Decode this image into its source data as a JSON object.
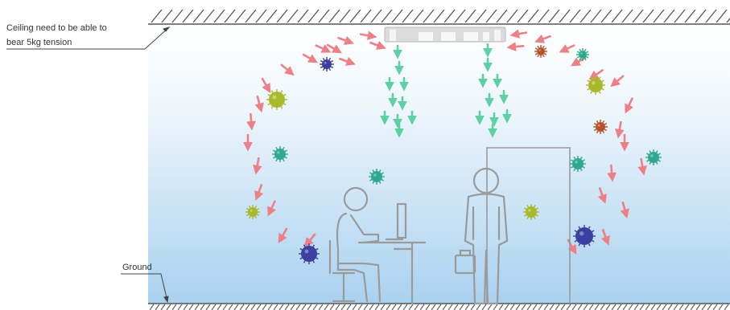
{
  "annotations": {
    "ceiling_line1": "Ceiling need to be able to",
    "ceiling_line2": "bear 5kg tension",
    "ground": "Ground"
  },
  "colors": {
    "room_gradient_top": "#ffffff",
    "room_gradient_bottom": "#a9d1ef",
    "line": "#555555",
    "figure_stroke": "#9a9a9a",
    "flow_arrow_dirty": "#ee7f86",
    "flow_arrow_clean": "#5fcfa4",
    "unit_body": "#d6d6d6"
  },
  "particles": [
    {
      "type": "virus",
      "color": "#3b3fa0"
    },
    {
      "type": "virus",
      "color": "#a9b92a"
    },
    {
      "type": "virus",
      "color": "#2ea98e"
    },
    {
      "type": "virus",
      "color": "#a9b92a"
    },
    {
      "type": "virus",
      "color": "#3b3fa0"
    },
    {
      "type": "virus",
      "color": "#2ea98e"
    },
    {
      "type": "virus",
      "color": "#b5522a"
    },
    {
      "type": "virus",
      "color": "#2ea98e"
    },
    {
      "type": "virus",
      "color": "#a9b92a"
    },
    {
      "type": "virus",
      "color": "#b5522a"
    },
    {
      "type": "virus",
      "color": "#2ea98e"
    },
    {
      "type": "virus",
      "color": "#2ea98e"
    },
    {
      "type": "virus",
      "color": "#a9b92a"
    },
    {
      "type": "virus",
      "color": "#3b3fa0"
    }
  ],
  "icons": [
    "air-purifier-unit-icon",
    "seated-person-icon",
    "standing-person-icon",
    "door-frame-icon"
  ]
}
